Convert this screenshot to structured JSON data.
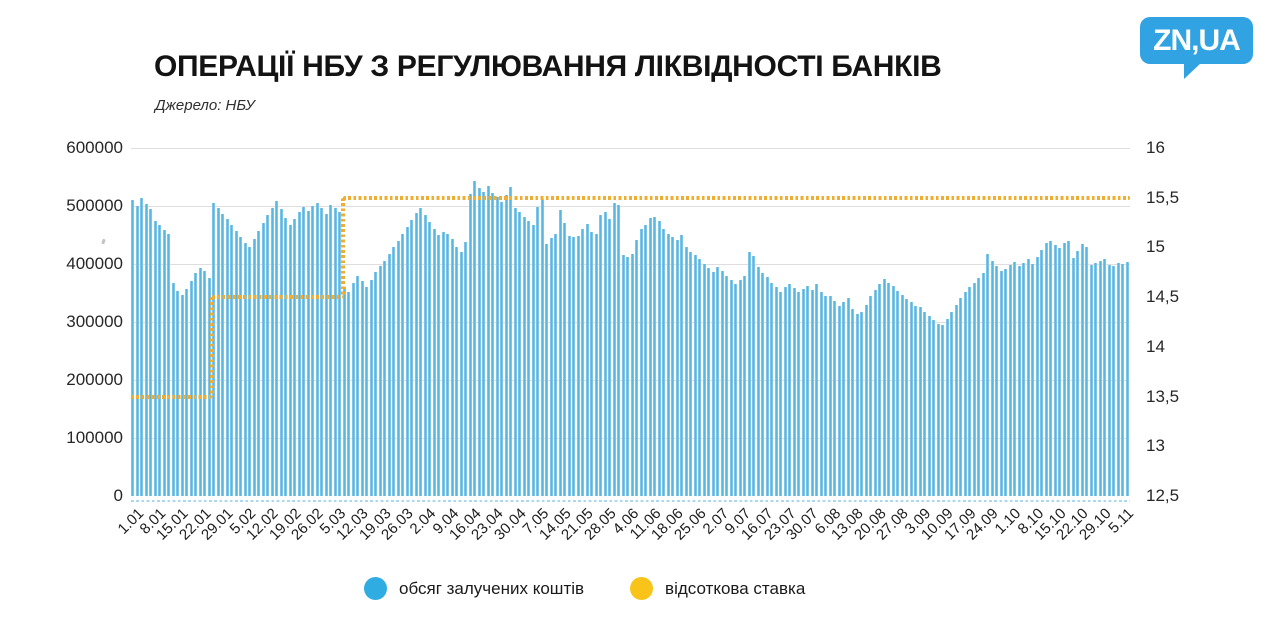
{
  "header": {
    "title": "ОПЕРАЦІЇ НБУ З РЕГУЛЮВАННЯ ЛІКВІДНОСТІ БАНКІВ",
    "source": "Джерело: НБУ"
  },
  "logo": {
    "text": "ZN,UA",
    "color": "#31a3e2"
  },
  "legend": {
    "volume": {
      "label": "обсяг залучених коштів",
      "color": "#2fade3"
    },
    "rate": {
      "label": "відсоткова ставка",
      "color": "#f8c41a"
    }
  },
  "chart_data": {
    "type": "bar",
    "title": "ОПЕРАЦІЇ НБУ З РЕГУЛЮВАННЯ ЛІКВІДНОСТІ БАНКІВ",
    "source": "Джерело: НБУ",
    "grid": true,
    "legend_position": "bottom",
    "bar_color": "#58b6e3",
    "bar_edge_color": "#9ed3ee",
    "line_color": "#f0ad2f",
    "grid_color": "#dedede",
    "baseline_color": "#a9d8f0",
    "left_axis": {
      "label": "",
      "min": 0,
      "max": 600000,
      "ticks": [
        "600000",
        "500000",
        "400000",
        "300000",
        "200000",
        "100000",
        "0"
      ]
    },
    "right_axis": {
      "label": "",
      "min": 12.5,
      "max": 16,
      "ticks": [
        "16",
        "15,5",
        "15",
        "14,5",
        "14",
        "13,5",
        "13",
        "12,5"
      ]
    },
    "x_ticks": [
      "1.01",
      "8.01",
      "15.01",
      "22.01",
      "29.01",
      "5.02",
      "12.02",
      "19.02",
      "26.02",
      "5.03",
      "12.03",
      "19.03",
      "26.03",
      "2.04",
      "9.04",
      "16.04",
      "23.04",
      "30.04",
      "7.05",
      "14.05",
      "21.05",
      "28.05",
      "4.06",
      "11.06",
      "18.06",
      "25.06",
      "2.07",
      "9.07",
      "16.07",
      "23.07",
      "30.07",
      "6.08",
      "13.08",
      "20.08",
      "27.08",
      "3.09",
      "10.09",
      "17.09",
      "24.09",
      "1.10",
      "8.10",
      "15.10",
      "22.10",
      "29.10",
      "5.11"
    ],
    "bars_per_xtick": 5,
    "series": [
      {
        "name": "обсяг залучених коштів",
        "axis": "left",
        "type": "bar",
        "values": [
          510000,
          500000,
          514000,
          504000,
          494000,
          474000,
          467000,
          459000,
          451000,
          367000,
          354000,
          346000,
          357000,
          371000,
          385000,
          393000,
          388000,
          376000,
          506000,
          496000,
          487000,
          478000,
          468000,
          457000,
          447000,
          437000,
          430000,
          443000,
          457000,
          470000,
          484000,
          497000,
          508000,
          494000,
          480000,
          468000,
          477000,
          489000,
          499000,
          492000,
          500000,
          505000,
          496000,
          487000,
          502000,
          497000,
          490000,
          361000,
          352000,
          367000,
          380000,
          371000,
          360000,
          373000,
          387000,
          396000,
          406000,
          418000,
          429000,
          440000,
          452000,
          464000,
          476000,
          488000,
          497000,
          485000,
          472000,
          460000,
          450000,
          455000,
          452000,
          443000,
          430000,
          421000,
          438000,
          520000,
          543000,
          531000,
          525000,
          535000,
          523000,
          515000,
          507000,
          519000,
          533000,
          497000,
          489000,
          481000,
          474000,
          468000,
          498000,
          512000,
          434000,
          445000,
          451000,
          493000,
          471000,
          449000,
          446000,
          448000,
          461000,
          469000,
          456000,
          452000,
          484000,
          489000,
          478000,
          505000,
          502000,
          416000,
          412000,
          418000,
          442000,
          460000,
          468000,
          479000,
          481000,
          475000,
          461000,
          452000,
          446000,
          441000,
          450000,
          429000,
          421000,
          415000,
          408000,
          400000,
          393000,
          387000,
          395000,
          388000,
          380000,
          372000,
          365000,
          372000,
          380000,
          421000,
          413000,
          395000,
          385000,
          378000,
          368000,
          360000,
          352000,
          360000,
          366000,
          358000,
          352000,
          357000,
          362000,
          356000,
          365000,
          352000,
          344000,
          344000,
          336000,
          328000,
          334000,
          342000,
          322000,
          314000,
          318000,
          330000,
          344000,
          356000,
          366000,
          374000,
          368000,
          362000,
          354000,
          347000,
          340000,
          334000,
          328000,
          326000,
          318000,
          310000,
          303000,
          297000,
          295000,
          306000,
          318000,
          330000,
          342000,
          352000,
          360000,
          368000,
          376000,
          384000,
          417000,
          406000,
          396000,
          388000,
          392000,
          398000,
          404000,
          396000,
          402000,
          408000,
          400000,
          412000,
          424000,
          436000,
          440000,
          433000,
          427000,
          436000,
          440000,
          410000,
          422000,
          435000,
          430000,
          398000,
          402000,
          405000,
          408000,
          399000,
          396000,
          401000,
          400000,
          404000
        ]
      },
      {
        "name": "відсоткова ставка",
        "axis": "right",
        "type": "step-line",
        "segments": [
          {
            "rate": 13.5,
            "from_bar": 0,
            "to_bar": 18
          },
          {
            "rate": 14.5,
            "from_bar": 18,
            "to_bar": 47
          },
          {
            "rate": 15.5,
            "from_bar": 47,
            "to_bar": 222
          }
        ]
      }
    ]
  }
}
